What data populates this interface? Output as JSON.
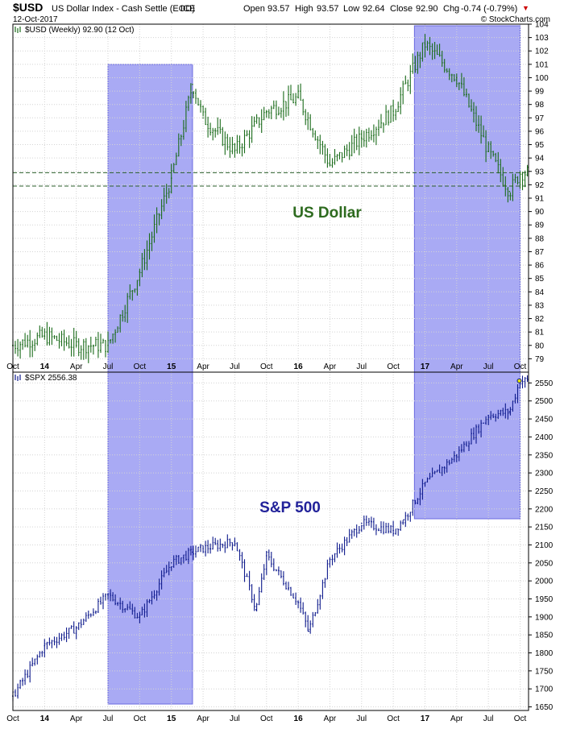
{
  "header": {
    "symbol": "$USD",
    "name": "US Dollar Index - Cash Settle (EOD)",
    "exchange": "ICE",
    "date": "12-Oct-2017",
    "open_label": "Open",
    "open": "93.57",
    "high_label": "High",
    "high": "93.57",
    "low_label": "Low",
    "low": "92.64",
    "close_label": "Close",
    "close": "92.90",
    "chg_label": "Chg",
    "chg": "-0.74 (-0.79%)",
    "chg_marker": "▼",
    "watermark": "© StockCharts.com"
  },
  "colors": {
    "usd_bar": "#1a6b1a",
    "spx_bar": "#0e1a8c",
    "highlight": "#a9aaf4",
    "highlight_edge": "#6a6ae0",
    "grid": "#d4d4d4",
    "usd_annot": "#2e6b1f",
    "spx_annot": "#22229a",
    "down_marker": "#cc0000"
  },
  "chart_data": [
    {
      "type": "line",
      "title": "$USD (Weekly) 92.90 (12 Oct)",
      "annotation": "US Dollar",
      "x_tick_labels": [
        "Oct",
        "14",
        "Apr",
        "Jul",
        "Oct",
        "15",
        "Apr",
        "Jul",
        "Oct",
        "16",
        "Apr",
        "Jul",
        "Oct",
        "17",
        "Apr",
        "Jul",
        "Oct"
      ],
      "ylim": [
        78,
        104
      ],
      "y_ticks": [
        79,
        80,
        81,
        82,
        83,
        84,
        85,
        86,
        87,
        88,
        89,
        90,
        91,
        92,
        93,
        94,
        95,
        96,
        97,
        98,
        99,
        100,
        101,
        102,
        103,
        104
      ],
      "horizontal_lines": [
        92.9,
        91.9
      ],
      "highlight_periods": [
        [
          "Jul 2014",
          "Mar 2015"
        ],
        [
          "Dec 2016",
          "Oct 2017"
        ]
      ],
      "x": [
        "Oct 2013",
        "Jan 2014",
        "Apr 2014",
        "Jul 2014",
        "Oct 2014",
        "Jan 2015",
        "Mar 2015",
        "Apr 2015",
        "Jul 2015",
        "Oct 2015",
        "Jan 2016",
        "Apr 2016",
        "Jul 2016",
        "Oct 2016",
        "Jan 2017",
        "Apr 2017",
        "Jul 2017",
        "Sep 2017",
        "Oct 2017"
      ],
      "series": [
        {
          "values": [
            80.0,
            80.7,
            80.0,
            80.0,
            85.5,
            92.5,
            99.5,
            97.0,
            94.5,
            97.5,
            98.5,
            93.5,
            95.5,
            97.5,
            102.5,
            100.0,
            94.5,
            91.5,
            92.9
          ]
        }
      ]
    },
    {
      "type": "line",
      "title": "$SPX 2556.38",
      "annotation": "S&P 500",
      "x_tick_labels": [
        "Oct",
        "14",
        "Apr",
        "Jul",
        "Oct",
        "15",
        "Apr",
        "Jul",
        "Oct",
        "16",
        "Apr",
        "Jul",
        "Oct",
        "17",
        "Apr",
        "Jul",
        "Oct"
      ],
      "ylim": [
        1640,
        2580
      ],
      "y_ticks": [
        1650,
        1700,
        1750,
        1800,
        1850,
        1900,
        1950,
        2000,
        2050,
        2100,
        2150,
        2200,
        2250,
        2300,
        2350,
        2400,
        2450,
        2500,
        2550
      ],
      "highlight_periods": [
        [
          "Jul 2014",
          "Mar 2015"
        ],
        [
          "Dec 2016",
          "Oct 2017"
        ]
      ],
      "x": [
        "Oct 2013",
        "Jan 2014",
        "Apr 2014",
        "Jul 2014",
        "Oct 2014",
        "Jan 2015",
        "Mar 2015",
        "Apr 2015",
        "Jul 2015",
        "Sep 2015",
        "Oct 2015",
        "Jan 2016",
        "Feb 2016",
        "Apr 2016",
        "Jul 2016",
        "Oct 2016",
        "Nov 2016",
        "Jan 2017",
        "Apr 2017",
        "Jul 2017",
        "Sep 2017",
        "Oct 2017"
      ],
      "series": [
        {
          "values": [
            1680,
            1820,
            1870,
            1960,
            1900,
            2050,
            2080,
            2090,
            2110,
            1920,
            2070,
            1940,
            1860,
            2060,
            2160,
            2140,
            2170,
            2270,
            2350,
            2460,
            2470,
            2556
          ]
        }
      ]
    }
  ]
}
